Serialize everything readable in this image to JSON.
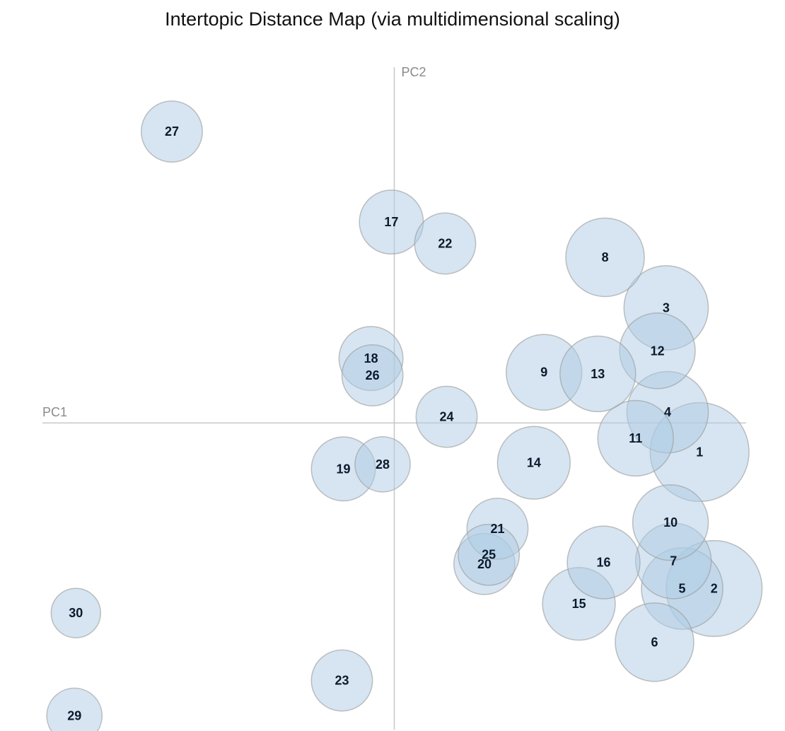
{
  "chart_data": {
    "type": "scatter",
    "title": "Intertopic Distance Map (via multidimensional scaling)",
    "xlabel": "PC1",
    "ylabel": "PC2",
    "xlim": [
      -2.42,
      2.42
    ],
    "ylim": [
      -2.0,
      2.32
    ],
    "grid": false,
    "legend": "none",
    "bubble_color": "#adcbe3",
    "bubble_stroke": "#9a9a9a",
    "points": [
      {
        "label": "1",
        "x": 2.1,
        "y": -0.19,
        "r": 0.34
      },
      {
        "label": "2",
        "x": 2.2,
        "y": -1.08,
        "r": 0.33
      },
      {
        "label": "3",
        "x": 1.87,
        "y": 0.75,
        "r": 0.29
      },
      {
        "label": "4",
        "x": 1.88,
        "y": 0.07,
        "r": 0.28
      },
      {
        "label": "5",
        "x": 1.98,
        "y": -1.08,
        "r": 0.28
      },
      {
        "label": "6",
        "x": 1.79,
        "y": -1.43,
        "r": 0.27
      },
      {
        "label": "7",
        "x": 1.92,
        "y": -0.9,
        "r": 0.26
      },
      {
        "label": "8",
        "x": 1.45,
        "y": 1.08,
        "r": 0.27
      },
      {
        "label": "9",
        "x": 1.03,
        "y": 0.33,
        "r": 0.26
      },
      {
        "label": "10",
        "x": 1.9,
        "y": -0.65,
        "r": 0.26
      },
      {
        "label": "11",
        "x": 1.66,
        "y": -0.1,
        "r": 0.26
      },
      {
        "label": "12",
        "x": 1.81,
        "y": 0.47,
        "r": 0.26
      },
      {
        "label": "13",
        "x": 1.4,
        "y": 0.32,
        "r": 0.26
      },
      {
        "label": "14",
        "x": 0.96,
        "y": -0.26,
        "r": 0.25
      },
      {
        "label": "15",
        "x": 1.27,
        "y": -1.18,
        "r": 0.25
      },
      {
        "label": "16",
        "x": 1.44,
        "y": -0.91,
        "r": 0.25
      },
      {
        "label": "17",
        "x": -0.02,
        "y": 1.31,
        "r": 0.22
      },
      {
        "label": "18",
        "x": -0.16,
        "y": 0.42,
        "r": 0.22
      },
      {
        "label": "19",
        "x": -0.35,
        "y": -0.3,
        "r": 0.22
      },
      {
        "label": "20",
        "x": 0.62,
        "y": -0.92,
        "r": 0.21
      },
      {
        "label": "21",
        "x": 0.71,
        "y": -0.69,
        "r": 0.21
      },
      {
        "label": "22",
        "x": 0.35,
        "y": 1.17,
        "r": 0.21
      },
      {
        "label": "23",
        "x": -0.36,
        "y": -1.68,
        "r": 0.21
      },
      {
        "label": "24",
        "x": 0.36,
        "y": 0.04,
        "r": 0.21
      },
      {
        "label": "25",
        "x": 0.65,
        "y": -0.86,
        "r": 0.21
      },
      {
        "label": "26",
        "x": -0.15,
        "y": 0.31,
        "r": 0.21
      },
      {
        "label": "27",
        "x": -1.53,
        "y": 1.9,
        "r": 0.21
      },
      {
        "label": "28",
        "x": -0.08,
        "y": -0.27,
        "r": 0.19
      },
      {
        "label": "29",
        "x": -2.2,
        "y": -1.91,
        "r": 0.19
      },
      {
        "label": "30",
        "x": -2.19,
        "y": -1.24,
        "r": 0.17
      }
    ]
  }
}
